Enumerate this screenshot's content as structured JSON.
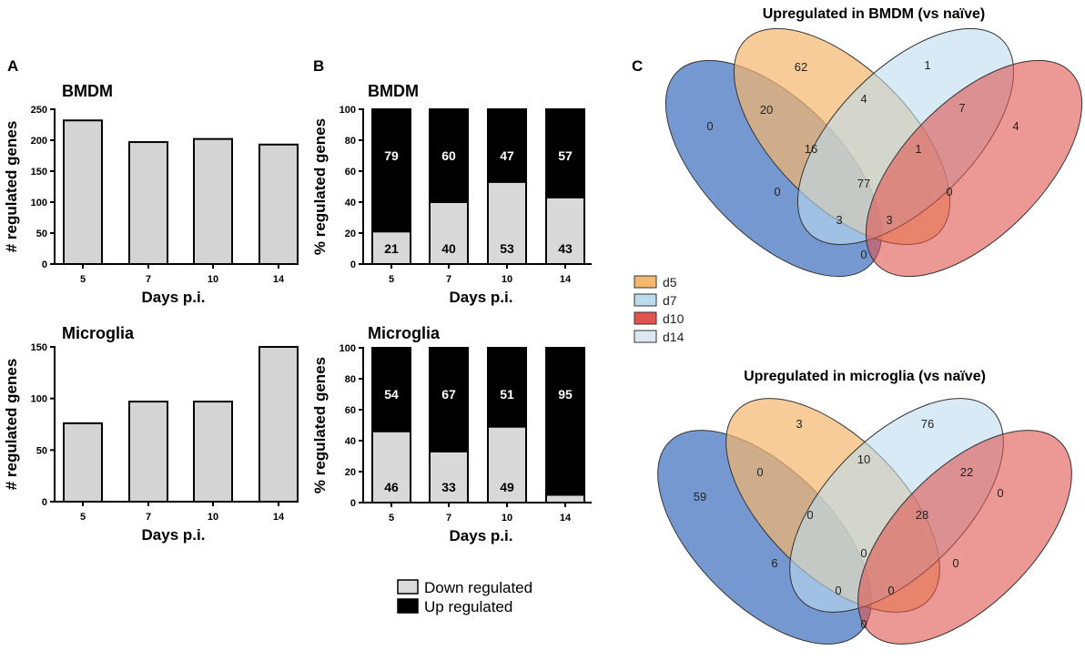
{
  "panel_letters": {
    "a": "A",
    "b": "B",
    "c": "C"
  },
  "colors": {
    "bar_fill": "#d4d4d4",
    "up": "#000000",
    "down": "#d9d9d9",
    "d5": "#f5b76e",
    "d7": "#bcdcee",
    "d10": "#e0534e",
    "d14": "#5d86c9",
    "d14_legend": "#dde7f1"
  },
  "chart_data": [
    {
      "id": "a1",
      "type": "bar",
      "title": "BMDM",
      "categories": [
        "5",
        "7",
        "10",
        "14"
      ],
      "values": [
        232,
        197,
        202,
        193
      ],
      "xlabel": "Days p.i.",
      "ylabel": "# regulated genes",
      "ylim": [
        0,
        250
      ],
      "yticks": [
        0,
        50,
        100,
        150,
        200,
        250
      ]
    },
    {
      "id": "a2",
      "type": "bar",
      "title": "Microglia",
      "categories": [
        "5",
        "7",
        "10",
        "14"
      ],
      "values": [
        76,
        97,
        97,
        150
      ],
      "xlabel": "Days p.i.",
      "ylabel": "# regulated genes",
      "ylim": [
        0,
        150
      ],
      "yticks": [
        0,
        50,
        100,
        150
      ]
    },
    {
      "id": "b1",
      "type": "bar",
      "stacked": true,
      "title": "BMDM",
      "categories": [
        "5",
        "7",
        "10",
        "14"
      ],
      "series": [
        {
          "name": "Down regulated",
          "values": [
            21,
            40,
            53,
            43
          ]
        },
        {
          "name": "Up regulated",
          "values": [
            79,
            60,
            47,
            57
          ]
        }
      ],
      "xlabel": "Days p.i.",
      "ylabel": "% regulated genes",
      "ylim": [
        0,
        100
      ],
      "yticks": [
        0,
        20,
        40,
        60,
        80,
        100
      ]
    },
    {
      "id": "b2",
      "type": "bar",
      "stacked": true,
      "title": "Microglia",
      "categories": [
        "5",
        "7",
        "10",
        "14"
      ],
      "series": [
        {
          "name": "Down regulated",
          "values": [
            46,
            33,
            49,
            5
          ]
        },
        {
          "name": "Up regulated",
          "values": [
            54,
            67,
            51,
            95
          ]
        }
      ],
      "shown_labels": {
        "down": [
          "46",
          "33",
          "49",
          ""
        ],
        "up": [
          "54",
          "67",
          "51",
          "95"
        ]
      },
      "xlabel": "Days p.i.",
      "ylabel": "% regulated genes",
      "ylim": [
        0,
        100
      ],
      "yticks": [
        0,
        20,
        40,
        60,
        80,
        100
      ]
    }
  ],
  "stack_legend": {
    "down": "Down regulated",
    "up": "Up regulated"
  },
  "venn_top": {
    "title": "Upregulated in BMDM (vs naïve)",
    "regions": {
      "d14_only": "0",
      "d5_only": "62",
      "d7_only": "1",
      "d10_only": "4",
      "d5_d14": "20",
      "d5_d7": "4",
      "d7_d10": "7",
      "d5_d7_d14": "16",
      "d5_d7_d10": "1",
      "all": "77",
      "d7_d14": "0",
      "d5_d10": "0",
      "d5_d10_d14": "3",
      "d7_d10_d14": "3",
      "d10_d14": "0"
    }
  },
  "venn_bottom": {
    "title": "Upregulated in microglia (vs naïve)",
    "regions": {
      "d14_only": "59",
      "d5_only": "3",
      "d7_only": "76",
      "d10_only": "0",
      "d5_d14": "0",
      "d5_d7": "10",
      "d7_d10": "22",
      "d5_d7_d14": "0",
      "d5_d7_d10": "28",
      "all": "0",
      "d7_d14": "6",
      "d5_d10": "0",
      "d5_d10_d14": "0",
      "d7_d10_d14": "0",
      "d10_d14": "0"
    }
  },
  "venn_legend": [
    "d5",
    "d7",
    "d10",
    "d14"
  ]
}
